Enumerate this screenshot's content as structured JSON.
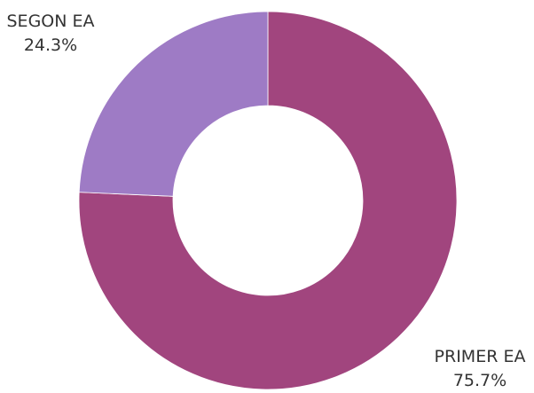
{
  "chart_data": {
    "type": "pie",
    "title": "",
    "series": [
      {
        "values": [
          75.7,
          24.3
        ]
      }
    ],
    "categories": [
      "PRIMER EA",
      "SEGON EA"
    ],
    "value_labels": [
      "75.7%",
      "24.3%"
    ],
    "colors": [
      "#a1457e",
      "#9e7bc5"
    ],
    "donut": true,
    "legend": "none"
  }
}
